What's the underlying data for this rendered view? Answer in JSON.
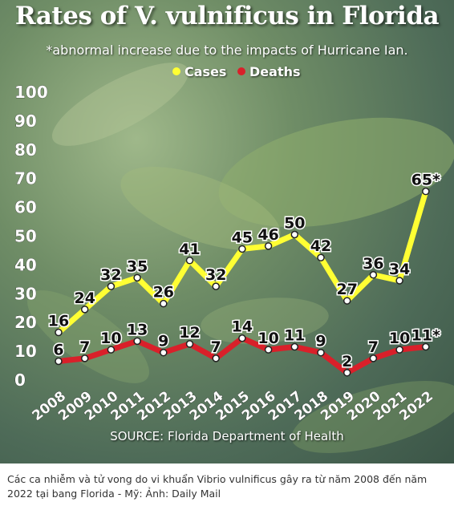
{
  "caption": "Các ca nhiễm và tử vong do vi khuẩn Vibrio vulnificus gây ra từ năm 2008 đến năm 2022 tại bang Florida - Mỹ: Ảnh: Daily Mail",
  "chart_data": {
    "type": "line",
    "title": "Rates of V. vulnificus in Florida",
    "subtitle": "*abnormal increase due to the impacts of Hurricane Ian.",
    "source": "SOURCE: Florida Department of Health",
    "categories": [
      "2008",
      "2009",
      "2010",
      "2011",
      "2012",
      "2013",
      "2014",
      "2015",
      "2016",
      "2017",
      "2018",
      "2019",
      "2020",
      "2021",
      "2022"
    ],
    "series": [
      {
        "name": "Cases",
        "color": "#ffff33",
        "values": [
          16,
          24,
          32,
          35,
          26,
          41,
          32,
          45,
          46,
          50,
          42,
          27,
          36,
          34,
          65
        ],
        "labels": [
          "16",
          "24",
          "32",
          "35",
          "26",
          "41",
          "32",
          "45",
          "46",
          "50",
          "42",
          "27",
          "36",
          "34",
          "65*"
        ]
      },
      {
        "name": "Deaths",
        "color": "#d9202a",
        "values": [
          6,
          7,
          10,
          13,
          9,
          12,
          7,
          14,
          10,
          11,
          9,
          2,
          7,
          10,
          11
        ],
        "labels": [
          "6",
          "7",
          "10",
          "13",
          "9",
          "12",
          "7",
          "14",
          "10",
          "11",
          "9",
          "2",
          "7",
          "10",
          "11*"
        ]
      }
    ],
    "yticks": [
      "0",
      "10",
      "20",
      "30",
      "40",
      "50",
      "60",
      "70",
      "80",
      "90",
      "100"
    ],
    "ylim": [
      0,
      100
    ],
    "grid": false,
    "legend": "top-center"
  }
}
